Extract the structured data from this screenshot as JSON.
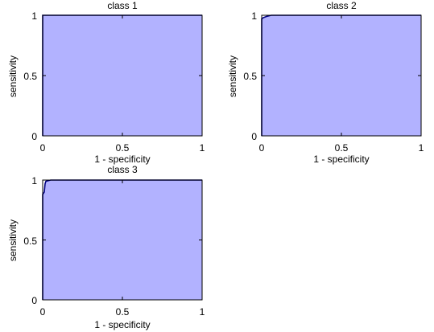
{
  "chart_data": [
    {
      "type": "area",
      "title": "class 1",
      "xlabel": "1 - specificity",
      "ylabel": "sensitivity",
      "xlim": [
        0,
        1
      ],
      "ylim": [
        0,
        1
      ],
      "xticks": [
        "0",
        "0.5",
        "1"
      ],
      "yticks": [
        "0",
        "0.5",
        "1"
      ],
      "grid": false,
      "series": [
        {
          "x": [
            0,
            0,
            1
          ],
          "y": [
            0,
            1,
            1
          ]
        }
      ]
    },
    {
      "type": "area",
      "title": "class 2",
      "xlabel": "1 - specificity",
      "ylabel": "sensitivity",
      "xlim": [
        0,
        1
      ],
      "ylim": [
        0,
        1
      ],
      "xticks": [
        "0",
        "0.5",
        "1"
      ],
      "yticks": [
        "0",
        "0.5",
        "1"
      ],
      "grid": false,
      "series": [
        {
          "x": [
            0,
            0,
            0.01,
            0.03,
            0.06,
            1
          ],
          "y": [
            0,
            0.97,
            0.98,
            0.99,
            1,
            1
          ]
        }
      ]
    },
    {
      "type": "area",
      "title": "class 3",
      "xlabel": "1 - specificity",
      "ylabel": "sensitivity",
      "xlim": [
        0,
        1
      ],
      "ylim": [
        0,
        1
      ],
      "xticks": [
        "0",
        "0.5",
        "1"
      ],
      "yticks": [
        "0",
        "0.5",
        "1"
      ],
      "grid": false,
      "series": [
        {
          "x": [
            0,
            0,
            0.01,
            0.015,
            0.02,
            0.05,
            1
          ],
          "y": [
            0,
            0.88,
            0.9,
            0.97,
            0.99,
            1,
            1
          ]
        }
      ]
    }
  ],
  "colors": {
    "fill": "#b2b2ff",
    "line": "#000080",
    "axes": "#000000",
    "background": "#ffffff"
  }
}
